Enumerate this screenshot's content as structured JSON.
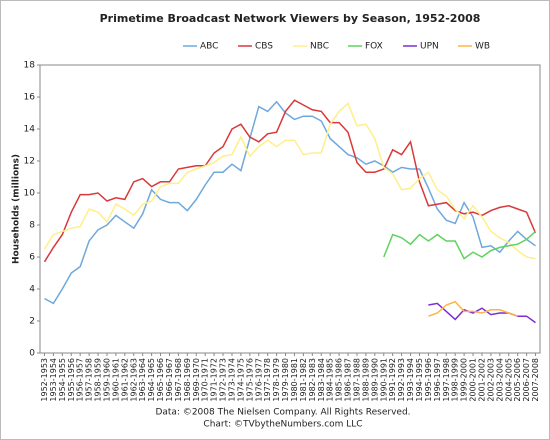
{
  "chart_data": {
    "type": "line",
    "title": "Primetime Broadcast Network Viewers by Season, 1952-2008",
    "ylabel": "Households (millions)",
    "notes": [
      "Data: ©2008 The Nielsen Company. All Rights Reserved.",
      "Chart: ©TVbytheNumbers.com LLC"
    ],
    "categories": [
      "1952-1953",
      "1953-1954",
      "1954-1955",
      "1955-1956",
      "1956-1957",
      "1957-1958",
      "1958-1959",
      "1959-1960",
      "1960-1961",
      "1961-1962",
      "1962-1963",
      "1963-1964",
      "1964-1965",
      "1965-1966",
      "1966-1967",
      "1967-1968",
      "1968-1969",
      "1969-1970",
      "1970-1971",
      "1971-1972",
      "1972-1973",
      "1973-1974",
      "1974-1975",
      "1975-1976",
      "1976-1977",
      "1977-1978",
      "1978-1979",
      "1979-1980",
      "1980-1981",
      "1981-1982",
      "1982-1983",
      "1983-1984",
      "1984-1985",
      "1985-1986",
      "1986-1987",
      "1987-1988",
      "1988-1989",
      "1989-1990",
      "1990-1991",
      "1991-1992",
      "1992-1993",
      "1993-1994",
      "1994-1995",
      "1995-1996",
      "1996-1997",
      "1997-1998",
      "1998-1999",
      "1999-2000",
      "2000-2001",
      "2001-2002",
      "2002-2003",
      "2003-2004",
      "2004-2005",
      "2005-2006",
      "2006-2007",
      "2007-2008"
    ],
    "series": [
      {
        "name": "ABC",
        "color": "#6fa8dc",
        "values": [
          3.4,
          3.1,
          4.0,
          5.0,
          5.4,
          7.0,
          7.7,
          8.0,
          8.6,
          8.2,
          7.8,
          8.7,
          10.2,
          9.6,
          9.4,
          9.4,
          8.9,
          9.6,
          10.5,
          11.3,
          11.3,
          11.8,
          11.4,
          13.4,
          15.4,
          15.1,
          15.7,
          15.0,
          14.6,
          14.8,
          14.8,
          14.5,
          13.4,
          12.9,
          12.4,
          12.2,
          11.8,
          12.0,
          11.7,
          11.3,
          11.6,
          11.5,
          11.5,
          10.3,
          9.0,
          8.3,
          8.1,
          9.4,
          8.5,
          6.6,
          6.7,
          6.3,
          7.0,
          7.6,
          7.1,
          6.7
        ]
      },
      {
        "name": "CBS",
        "color": "#d9383a",
        "values": [
          5.7,
          6.6,
          7.4,
          8.8,
          9.9,
          9.9,
          10.0,
          9.5,
          9.7,
          9.6,
          10.7,
          10.9,
          10.4,
          10.7,
          10.7,
          11.5,
          11.6,
          11.7,
          11.7,
          12.5,
          12.9,
          14.0,
          14.3,
          13.5,
          13.2,
          13.7,
          13.8,
          15.1,
          15.8,
          15.5,
          15.2,
          15.1,
          14.4,
          14.4,
          13.8,
          11.9,
          11.3,
          11.3,
          11.5,
          12.7,
          12.4,
          13.2,
          10.7,
          9.2,
          9.3,
          9.4,
          8.9,
          8.7,
          8.8,
          8.6,
          8.9,
          9.1,
          9.2,
          9.0,
          8.8,
          7.5
        ]
      },
      {
        "name": "NBC",
        "color": "#ffef8a",
        "values": [
          6.5,
          7.4,
          7.6,
          7.8,
          7.9,
          9.0,
          8.8,
          8.2,
          9.3,
          9.0,
          8.6,
          9.3,
          9.5,
          10.4,
          10.6,
          10.6,
          11.3,
          11.5,
          11.7,
          11.9,
          12.3,
          12.4,
          13.5,
          12.3,
          12.9,
          13.3,
          12.9,
          13.3,
          13.3,
          12.4,
          12.5,
          12.5,
          14.3,
          15.1,
          15.6,
          14.2,
          14.3,
          13.4,
          11.6,
          11.2,
          10.2,
          10.3,
          10.9,
          11.3,
          10.2,
          9.8,
          9.0,
          8.4,
          9.2,
          8.5,
          7.6,
          7.2,
          6.9,
          6.4,
          6.0,
          5.9
        ]
      },
      {
        "name": "FOX",
        "color": "#5fd35f",
        "values": [
          null,
          null,
          null,
          null,
          null,
          null,
          null,
          null,
          null,
          null,
          null,
          null,
          null,
          null,
          null,
          null,
          null,
          null,
          null,
          null,
          null,
          null,
          null,
          null,
          null,
          null,
          null,
          null,
          null,
          null,
          null,
          null,
          null,
          null,
          null,
          null,
          null,
          null,
          6.0,
          7.4,
          7.2,
          6.8,
          7.4,
          7.0,
          7.4,
          7.0,
          7.0,
          5.9,
          6.3,
          6.0,
          6.4,
          6.6,
          6.7,
          6.8,
          7.1,
          7.6
        ]
      },
      {
        "name": "UPN",
        "color": "#7b2fd4",
        "values": [
          null,
          null,
          null,
          null,
          null,
          null,
          null,
          null,
          null,
          null,
          null,
          null,
          null,
          null,
          null,
          null,
          null,
          null,
          null,
          null,
          null,
          null,
          null,
          null,
          null,
          null,
          null,
          null,
          null,
          null,
          null,
          null,
          null,
          null,
          null,
          null,
          null,
          null,
          null,
          null,
          null,
          null,
          null,
          3.0,
          3.1,
          2.6,
          2.1,
          2.7,
          2.5,
          2.8,
          2.4,
          2.5,
          2.5,
          2.3,
          2.3,
          1.9
        ]
      },
      {
        "name": "WB",
        "color": "#ffb347",
        "values": [
          null,
          null,
          null,
          null,
          null,
          null,
          null,
          null,
          null,
          null,
          null,
          null,
          null,
          null,
          null,
          null,
          null,
          null,
          null,
          null,
          null,
          null,
          null,
          null,
          null,
          null,
          null,
          null,
          null,
          null,
          null,
          null,
          null,
          null,
          null,
          null,
          null,
          null,
          null,
          null,
          null,
          null,
          null,
          2.3,
          2.5,
          3.0,
          3.2,
          2.6,
          2.6,
          2.5,
          2.7,
          2.7,
          2.5,
          2.3,
          null,
          null
        ]
      }
    ],
    "ylim": [
      0,
      18
    ],
    "yticks": [
      0,
      2,
      4,
      6,
      8,
      10,
      12,
      14,
      16,
      18
    ],
    "grid": false,
    "legend": "top"
  }
}
